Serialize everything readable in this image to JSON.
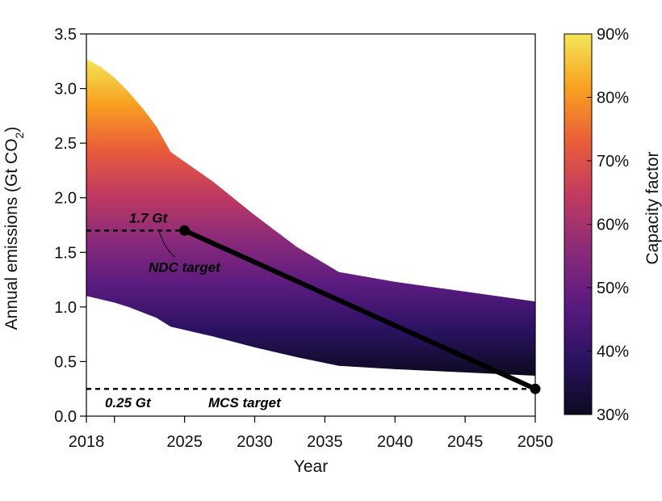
{
  "chart_data": {
    "type": "area",
    "title": "",
    "xlabel": "Year",
    "ylabel": "Annual emissions (Gt CO",
    "ylabel_sub": "2",
    "ylabel_end": ")",
    "xlim": [
      2018,
      2050
    ],
    "ylim": [
      0,
      3.5
    ],
    "x_ticks": [
      2018,
      2025,
      2030,
      2035,
      2040,
      2045,
      2050
    ],
    "x_minor_ticks": [
      2020
    ],
    "y_ticks": [
      0.0,
      0.5,
      1.0,
      1.5,
      2.0,
      2.5,
      3.0,
      3.5
    ],
    "y_tick_labels": [
      "0.0",
      "0.5",
      "1.0",
      "1.5",
      "2.0",
      "2.5",
      "3.0",
      "3.5"
    ],
    "grid": false,
    "band": {
      "x": [
        2018,
        2019,
        2020,
        2021,
        2022,
        2023,
        2024,
        2025,
        2027,
        2030,
        2033,
        2036,
        2040,
        2045,
        2050
      ],
      "upper": [
        3.27,
        3.2,
        3.1,
        2.97,
        2.82,
        2.65,
        2.42,
        2.33,
        2.15,
        1.84,
        1.55,
        1.32,
        1.23,
        1.14,
        1.05
      ],
      "lower": [
        1.1,
        1.07,
        1.04,
        1.0,
        0.95,
        0.9,
        0.82,
        0.79,
        0.73,
        0.63,
        0.54,
        0.46,
        0.43,
        0.4,
        0.37
      ],
      "color_variable": "Capacity factor",
      "color_at_lower": "30%",
      "color_at_upper": "90%"
    },
    "pathway": {
      "x": [
        2025,
        2050
      ],
      "y": [
        1.7,
        0.25
      ],
      "color": "#000000"
    },
    "reference_lines": [
      {
        "name": "NDC target",
        "value_label": "1.7 Gt",
        "y": 1.7,
        "x_start": 2018,
        "x_end": 2025
      },
      {
        "name": "MCS target",
        "value_label": "0.25 Gt",
        "y": 0.25,
        "x_start": 2018,
        "x_end": 2050
      }
    ],
    "colorbar": {
      "label": "Capacity factor",
      "range": [
        30,
        90
      ],
      "ticks": [
        30,
        40,
        50,
        60,
        70,
        80,
        90
      ],
      "tick_labels": [
        "30%",
        "40%",
        "50%",
        "60%",
        "70%",
        "80%",
        "90%"
      ],
      "colormap": [
        "#0c0a20",
        "#2a1260",
        "#5a1a80",
        "#8a2a7a",
        "#c03a62",
        "#ea5c3a",
        "#f8a020",
        "#f4e658"
      ]
    }
  }
}
